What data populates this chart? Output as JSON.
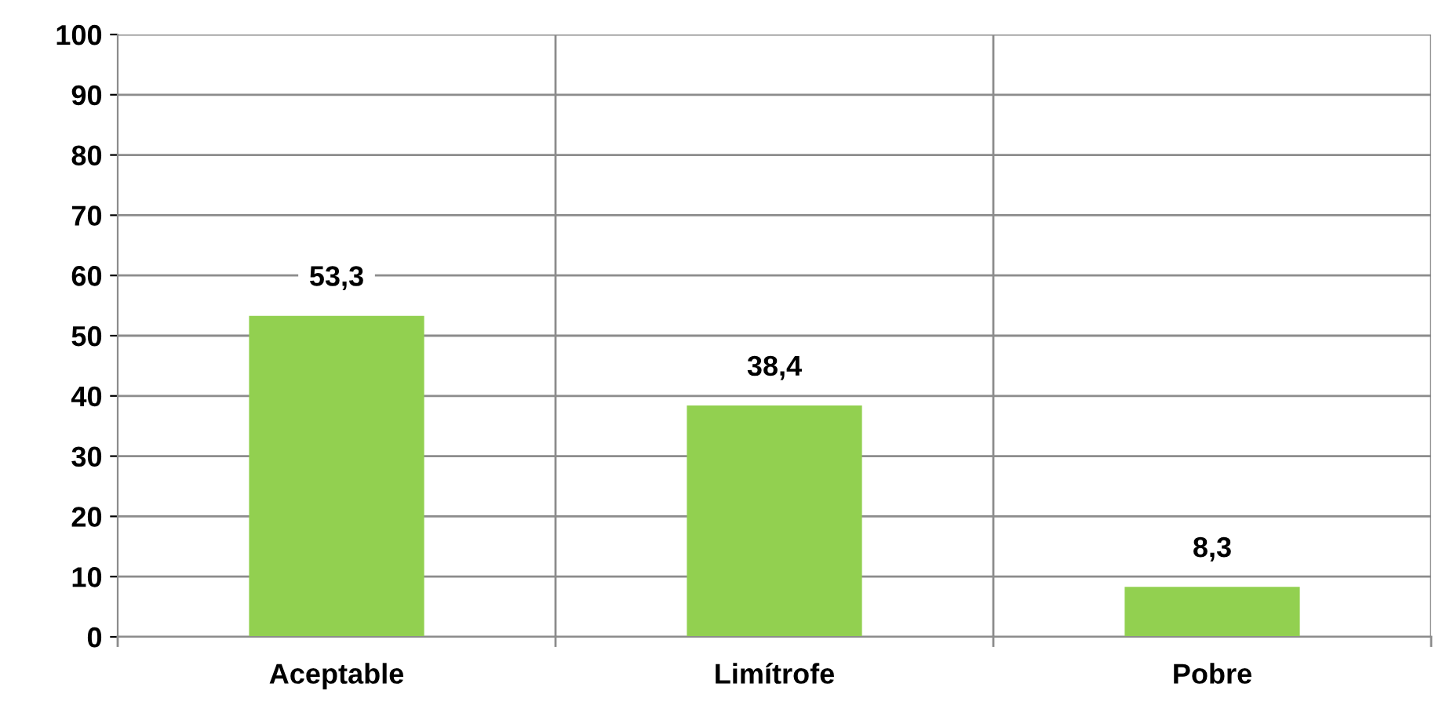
{
  "chart_data": {
    "type": "bar",
    "categories": [
      "Aceptable",
      "Limítrofe",
      "Pobre"
    ],
    "values": [
      53.3,
      38.4,
      8.3
    ],
    "color": "#92d050",
    "value_labels": [
      "53,3",
      "38,4",
      "8,3"
    ],
    "ylim": [
      0,
      100
    ],
    "yticks": [
      0,
      10,
      20,
      30,
      40,
      50,
      60,
      70,
      80,
      90,
      100
    ],
    "grid": true
  }
}
